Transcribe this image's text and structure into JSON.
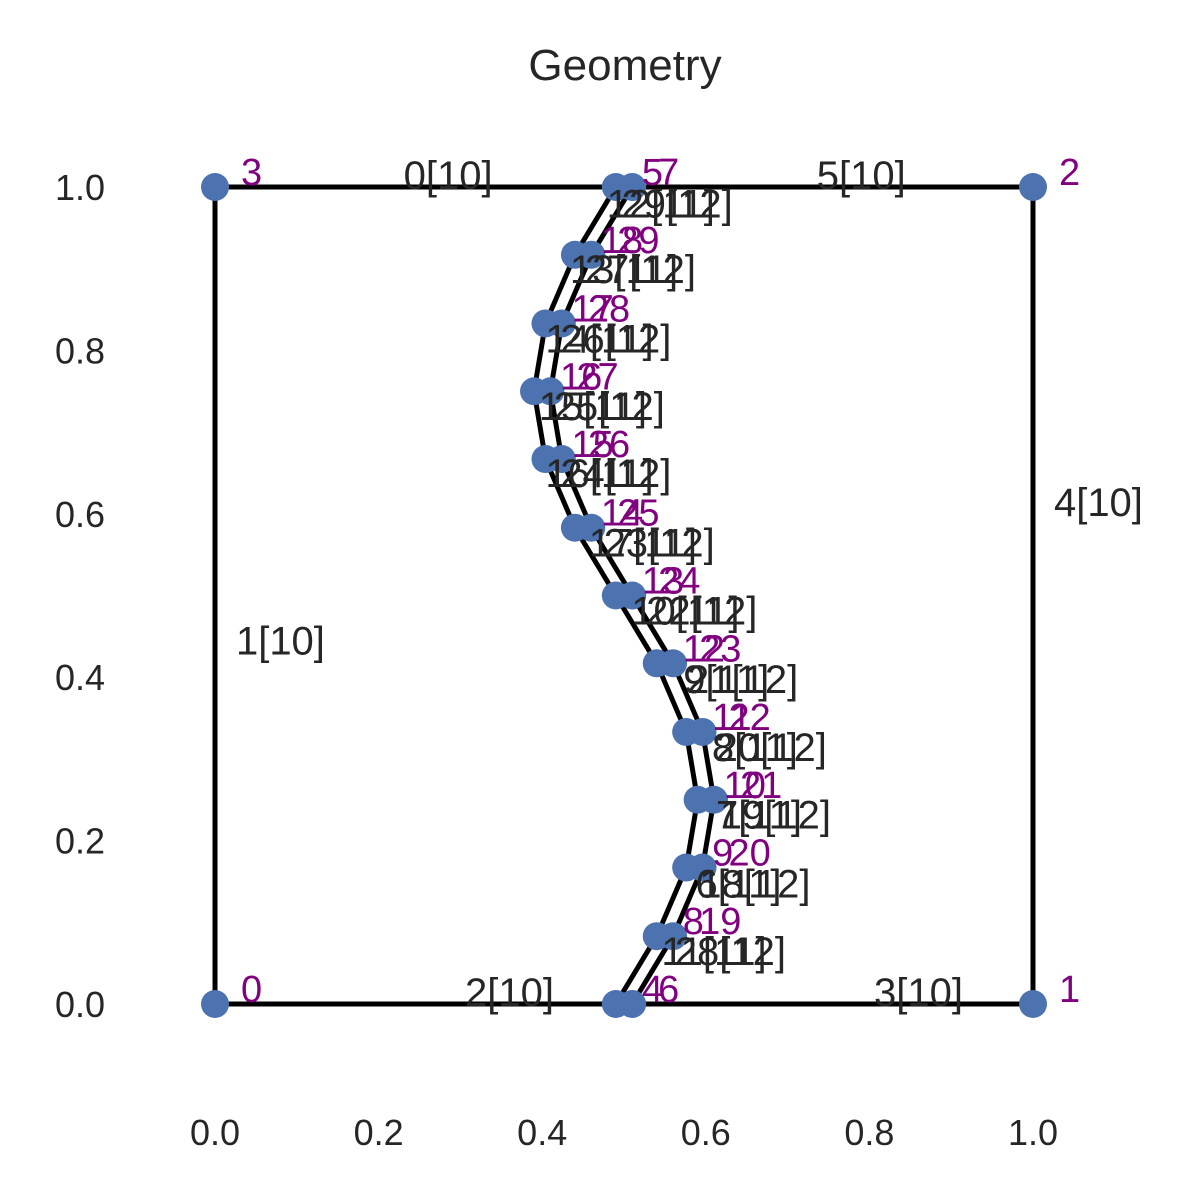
{
  "chart_data": {
    "type": "scatter",
    "title": "Geometry",
    "xlabel": "",
    "ylabel": "",
    "xlim": [
      -0.05,
      1.05
    ],
    "ylim": [
      -0.1,
      1.1
    ],
    "x_ticks": [
      "0.0",
      "0.2",
      "0.4",
      "0.6",
      "0.8",
      "1.0"
    ],
    "y_ticks": [
      "0.0",
      "0.2",
      "0.4",
      "0.6",
      "0.8",
      "1.0"
    ],
    "grid": false,
    "colors": {
      "point": "#4c72b0",
      "node_label": "#800080",
      "line": "#000000",
      "text": "#262626"
    },
    "nodes": [
      {
        "id": "0",
        "x": 0.0,
        "y": 0.0
      },
      {
        "id": "1",
        "x": 1.0,
        "y": 0.0
      },
      {
        "id": "2",
        "x": 1.0,
        "y": 1.0
      },
      {
        "id": "3",
        "x": 0.0,
        "y": 1.0
      },
      {
        "id": "4",
        "x": 0.49,
        "y": 0.0
      },
      {
        "id": "5",
        "x": 0.49,
        "y": 1.0
      },
      {
        "id": "6",
        "x": 0.51,
        "y": 0.0
      },
      {
        "id": "7",
        "x": 0.51,
        "y": 1.0
      },
      {
        "id": "8",
        "x": 0.54,
        "y": 0.083
      },
      {
        "id": "9",
        "x": 0.576,
        "y": 0.167
      },
      {
        "id": "10",
        "x": 0.59,
        "y": 0.25
      },
      {
        "id": "11",
        "x": 0.576,
        "y": 0.333
      },
      {
        "id": "12",
        "x": 0.54,
        "y": 0.417
      },
      {
        "id": "13",
        "x": 0.49,
        "y": 0.5
      },
      {
        "id": "14",
        "x": 0.44,
        "y": 0.583
      },
      {
        "id": "15",
        "x": 0.404,
        "y": 0.667
      },
      {
        "id": "16",
        "x": 0.39,
        "y": 0.75
      },
      {
        "id": "17",
        "x": 0.404,
        "y": 0.833
      },
      {
        "id": "18",
        "x": 0.44,
        "y": 0.917
      },
      {
        "id": "19",
        "x": 0.56,
        "y": 0.083
      },
      {
        "id": "20",
        "x": 0.596,
        "y": 0.167
      },
      {
        "id": "21",
        "x": 0.61,
        "y": 0.25
      },
      {
        "id": "22",
        "x": 0.596,
        "y": 0.333
      },
      {
        "id": "23",
        "x": 0.56,
        "y": 0.417
      },
      {
        "id": "24",
        "x": 0.51,
        "y": 0.5
      },
      {
        "id": "25",
        "x": 0.46,
        "y": 0.583
      },
      {
        "id": "26",
        "x": 0.424,
        "y": 0.667
      },
      {
        "id": "27",
        "x": 0.41,
        "y": 0.75
      },
      {
        "id": "28",
        "x": 0.424,
        "y": 0.833
      },
      {
        "id": "29",
        "x": 0.46,
        "y": 0.917
      }
    ],
    "edge_labels": [
      {
        "text": "0[10]",
        "x": 0.285,
        "y": 1.0
      },
      {
        "text": "5[10]",
        "x": 0.79,
        "y": 1.0
      },
      {
        "text": "1[10]",
        "x": 0.08,
        "y": 0.43
      },
      {
        "text": "4[10]",
        "x": 1.08,
        "y": 0.6
      },
      {
        "text": "2[10]",
        "x": 0.36,
        "y": 0.0
      },
      {
        "text": "3[10]",
        "x": 0.86,
        "y": 0.0
      },
      {
        "text": "12[11]",
        "x": 0.545,
        "y": 0.965
      },
      {
        "text": "29[12]",
        "x": 0.565,
        "y": 0.965
      },
      {
        "text": "13[11]",
        "x": 0.5,
        "y": 0.885
      },
      {
        "text": "27[12]",
        "x": 0.52,
        "y": 0.885
      },
      {
        "text": "14[11]",
        "x": 0.47,
        "y": 0.8
      },
      {
        "text": "26[12]",
        "x": 0.49,
        "y": 0.8
      },
      {
        "text": "15[11]",
        "x": 0.462,
        "y": 0.717
      },
      {
        "text": "25[12]",
        "x": 0.482,
        "y": 0.717
      },
      {
        "text": "16[11]",
        "x": 0.47,
        "y": 0.635
      },
      {
        "text": "24[12]",
        "x": 0.49,
        "y": 0.635
      },
      {
        "text": "17[11]",
        "x": 0.523,
        "y": 0.55
      },
      {
        "text": "23[12]",
        "x": 0.543,
        "y": 0.55
      },
      {
        "text": "10[11]",
        "x": 0.575,
        "y": 0.467
      },
      {
        "text": "22[12]",
        "x": 0.595,
        "y": 0.467
      },
      {
        "text": "9[11]",
        "x": 0.625,
        "y": 0.383
      },
      {
        "text": "21[12]",
        "x": 0.645,
        "y": 0.383
      },
      {
        "text": "8[11]",
        "x": 0.66,
        "y": 0.3
      },
      {
        "text": "20[12]",
        "x": 0.68,
        "y": 0.3
      },
      {
        "text": "7[11]",
        "x": 0.665,
        "y": 0.217
      },
      {
        "text": "19[12]",
        "x": 0.685,
        "y": 0.217
      },
      {
        "text": "6[11]",
        "x": 0.64,
        "y": 0.133
      },
      {
        "text": "18[12]",
        "x": 0.66,
        "y": 0.133
      },
      {
        "text": "11[11]",
        "x": 0.61,
        "y": 0.05
      },
      {
        "text": "28[12]",
        "x": 0.63,
        "y": 0.05
      }
    ]
  }
}
